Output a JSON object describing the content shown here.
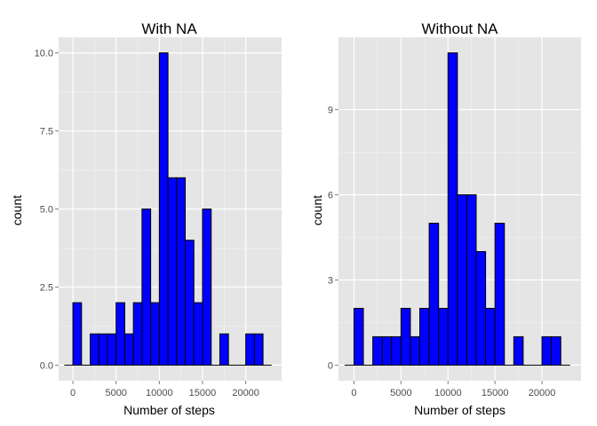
{
  "chart_data": [
    {
      "type": "bar",
      "title": "With NA",
      "xlabel": "Number of steps",
      "ylabel": "count",
      "x_bins": [
        0,
        1000,
        2000,
        3000,
        4000,
        5000,
        6000,
        7000,
        8000,
        9000,
        10000,
        11000,
        12000,
        13000,
        14000,
        15000,
        16000,
        17000,
        18000,
        19000,
        20000,
        21000
      ],
      "bin_width": 1000,
      "values": [
        2,
        0,
        1,
        1,
        1,
        2,
        1,
        2,
        5,
        2,
        10,
        6,
        6,
        4,
        2,
        5,
        0,
        1,
        0,
        0,
        1,
        1
      ],
      "xlim": [
        -1650,
        24150
      ],
      "ylim": [
        -0.5,
        10.5
      ],
      "x_ticks": [
        0,
        5000,
        10000,
        15000,
        20000
      ],
      "x_tick_labels": [
        "0",
        "5000",
        "10000",
        "15000",
        "20000"
      ],
      "y_ticks": [
        0,
        2.5,
        5,
        7.5,
        10
      ],
      "y_tick_labels": [
        "0.0",
        "2.5",
        "5.0",
        "7.5",
        "10.0"
      ],
      "fill_color": "#0000ff",
      "outline_color": "#000000",
      "panel_background": "#e5e5e5",
      "grid": true
    },
    {
      "type": "bar",
      "title": "Without NA",
      "xlabel": "Number of steps",
      "ylabel": "count",
      "x_bins": [
        0,
        1000,
        2000,
        3000,
        4000,
        5000,
        6000,
        7000,
        8000,
        9000,
        10000,
        11000,
        12000,
        13000,
        14000,
        15000,
        16000,
        17000,
        18000,
        19000,
        20000,
        21000
      ],
      "bin_width": 1000,
      "values": [
        2,
        0,
        1,
        1,
        1,
        2,
        1,
        2,
        5,
        2,
        11,
        6,
        6,
        4,
        2,
        5,
        0,
        1,
        0,
        0,
        1,
        1
      ],
      "xlim": [
        -1650,
        24150
      ],
      "ylim": [
        -0.55,
        11.55
      ],
      "x_ticks": [
        0,
        5000,
        10000,
        15000,
        20000
      ],
      "x_tick_labels": [
        "0",
        "5000",
        "10000",
        "15000",
        "20000"
      ],
      "y_ticks": [
        0,
        3,
        6,
        9
      ],
      "y_tick_labels": [
        "0",
        "3",
        "6",
        "9"
      ],
      "fill_color": "#0000ff",
      "outline_color": "#000000",
      "panel_background": "#e5e5e5",
      "grid": true
    }
  ]
}
